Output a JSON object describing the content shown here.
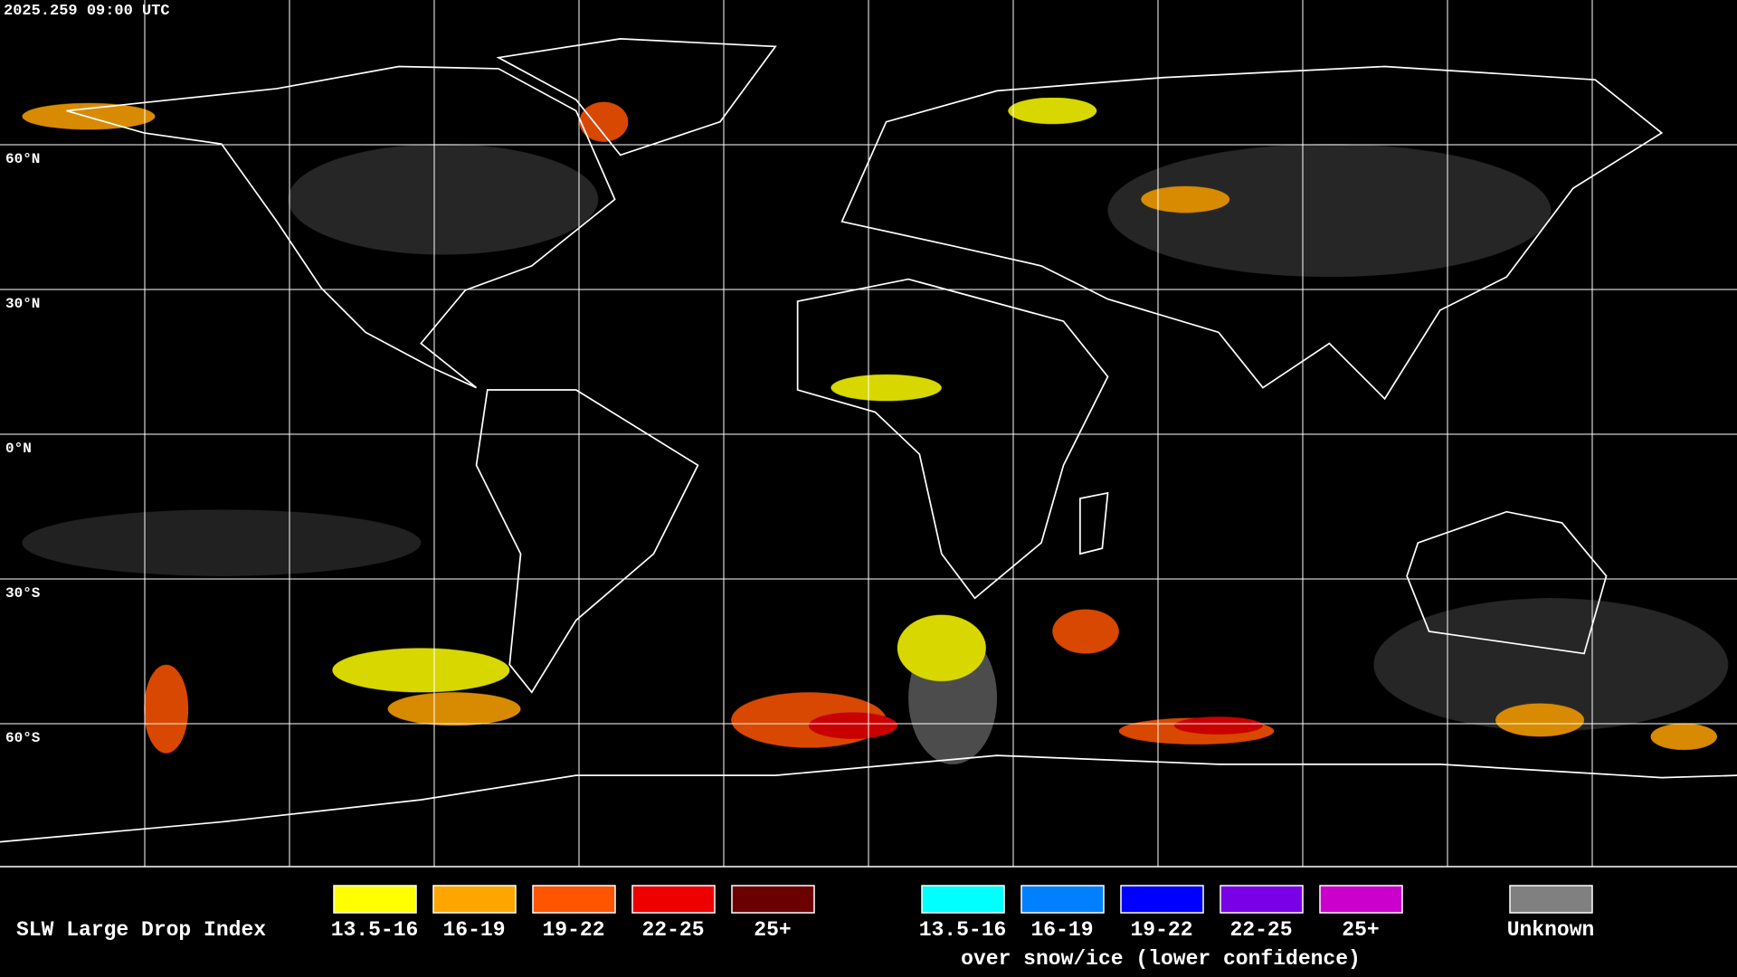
{
  "timestamp": "2025.259 09:00 UTC",
  "latitude_labels": [
    "60°N",
    "30°N",
    "0°N",
    "30°S",
    "60°S"
  ],
  "legend": {
    "title": "SLW Large Drop Index",
    "liquid": [
      {
        "label": "13.5-16",
        "color": "#ffff00"
      },
      {
        "label": "16-19",
        "color": "#ffa500"
      },
      {
        "label": "19-22",
        "color": "#ff5500"
      },
      {
        "label": "22-25",
        "color": "#ee0000"
      },
      {
        "label": "25+",
        "color": "#6b0000"
      }
    ],
    "snow_ice": {
      "items": [
        {
          "label": "13.5-16",
          "color": "#00ffff"
        },
        {
          "label": "16-19",
          "color": "#0080ff"
        },
        {
          "label": "19-22",
          "color": "#0000ff"
        },
        {
          "label": "22-25",
          "color": "#7a00e6"
        },
        {
          "label": "25+",
          "color": "#cc00cc"
        }
      ],
      "note": "over snow/ice (lower confidence)"
    },
    "unknown": {
      "label": "Unknown",
      "color": "#808080"
    }
  }
}
